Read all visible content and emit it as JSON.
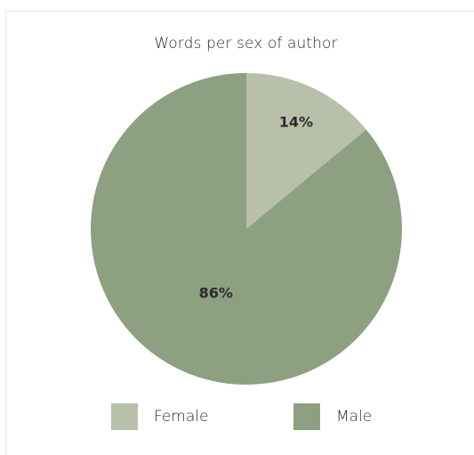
{
  "chart_data": {
    "type": "pie",
    "title": "Words per sex of author",
    "slices": [
      {
        "label": "Female",
        "value": 14,
        "display": "14%",
        "color": "#b8c0a9"
      },
      {
        "label": "Male",
        "value": 86,
        "display": "86%",
        "color": "#8da082"
      }
    ],
    "legend_position": "bottom"
  }
}
